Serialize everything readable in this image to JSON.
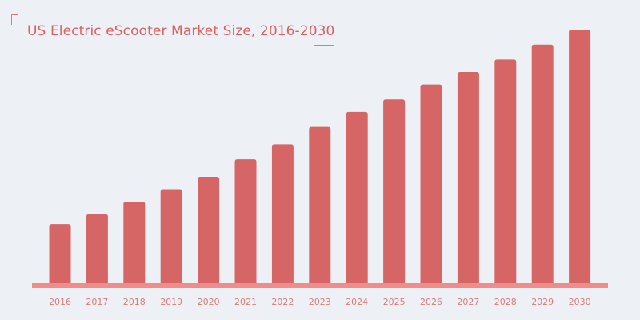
{
  "chart_data": {
    "type": "bar",
    "title": "US Electric eScooter Market Size, 2016-2030",
    "xlabel": "",
    "ylabel": "",
    "categories": [
      "2016",
      "2017",
      "2018",
      "2019",
      "2020",
      "2021",
      "2022",
      "2023",
      "2024",
      "2025",
      "2026",
      "2027",
      "2028",
      "2029",
      "2030"
    ],
    "values": [
      24,
      28,
      33,
      38,
      43,
      50,
      56,
      63,
      69,
      74,
      80,
      85,
      90,
      96,
      102
    ],
    "ylim": [
      0,
      102
    ],
    "grid": false,
    "legend": "none",
    "colors": {
      "bar": "#d66666",
      "baseline": "#f08d8b",
      "title": "#d86161",
      "tick_label": "#d97b79",
      "background": "#edf1f6"
    }
  }
}
